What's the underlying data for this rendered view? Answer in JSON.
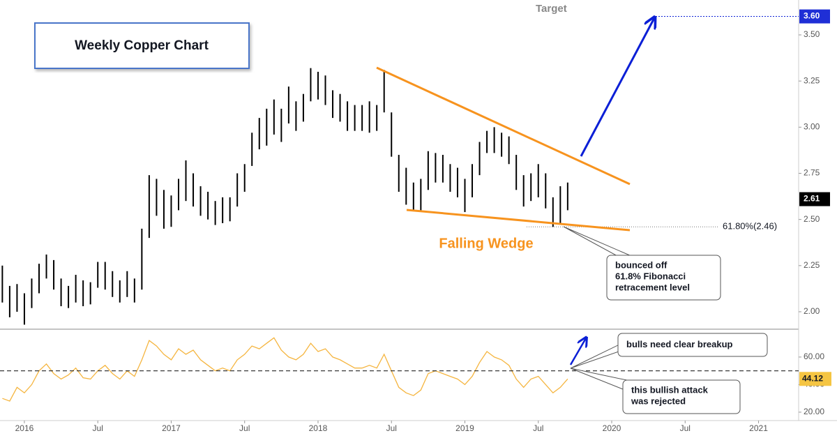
{
  "chart_data": [
    {
      "type": "ohlc",
      "title": "Weekly Copper Chart",
      "color": "#000000",
      "x": [
        2015.85,
        2015.9,
        2015.95,
        2016,
        2016.05,
        2016.1,
        2016.15,
        2016.2,
        2016.25,
        2016.3,
        2016.35,
        2016.4,
        2016.45,
        2016.5,
        2016.55,
        2016.6,
        2016.65,
        2016.7,
        2016.75,
        2016.8,
        2016.85,
        2016.9,
        2016.95,
        2017,
        2017.05,
        2017.1,
        2017.15,
        2017.2,
        2017.25,
        2017.3,
        2017.35,
        2017.4,
        2017.45,
        2017.5,
        2017.55,
        2017.6,
        2017.65,
        2017.7,
        2017.75,
        2017.8,
        2017.85,
        2017.9,
        2017.95,
        2018,
        2018.05,
        2018.1,
        2018.15,
        2018.2,
        2018.25,
        2018.3,
        2018.35,
        2018.4,
        2018.45,
        2018.5,
        2018.55,
        2018.6,
        2018.65,
        2018.7,
        2018.75,
        2018.8,
        2018.85,
        2018.9,
        2018.95,
        2019,
        2019.05,
        2019.1,
        2019.15,
        2019.2,
        2019.25,
        2019.3,
        2019.35,
        2019.4,
        2019.45,
        2019.5,
        2019.55,
        2019.6,
        2019.65,
        2019.7
      ],
      "high": [
        2.25,
        2.14,
        2.15,
        2.1,
        2.18,
        2.26,
        2.31,
        2.28,
        2.18,
        2.14,
        2.2,
        2.17,
        2.16,
        2.27,
        2.27,
        2.22,
        2.17,
        2.22,
        2.18,
        2.45,
        2.74,
        2.72,
        2.66,
        2.63,
        2.72,
        2.82,
        2.75,
        2.68,
        2.65,
        2.6,
        2.62,
        2.62,
        2.75,
        2.8,
        2.97,
        3.05,
        3.1,
        3.15,
        3.1,
        3.22,
        3.14,
        3.18,
        3.32,
        3.3,
        3.28,
        3.2,
        3.18,
        3.14,
        3.12,
        3.12,
        3.14,
        3.12,
        3.31,
        3.08,
        2.85,
        2.78,
        2.7,
        2.72,
        2.87,
        2.86,
        2.85,
        2.8,
        2.78,
        2.72,
        2.8,
        2.92,
        2.98,
        3.0,
        2.97,
        2.95,
        2.85,
        2.74,
        2.75,
        2.8,
        2.75,
        2.62,
        2.68,
        2.7
      ],
      "low": [
        2.05,
        1.97,
        2.0,
        1.93,
        2.02,
        2.1,
        2.18,
        2.12,
        2.03,
        2.02,
        2.05,
        2.03,
        2.04,
        2.13,
        2.12,
        2.08,
        2.05,
        2.08,
        2.05,
        2.12,
        2.4,
        2.52,
        2.45,
        2.46,
        2.55,
        2.6,
        2.57,
        2.52,
        2.5,
        2.47,
        2.48,
        2.49,
        2.57,
        2.65,
        2.79,
        2.88,
        2.9,
        2.96,
        2.92,
        3.02,
        2.98,
        3.03,
        3.14,
        3.15,
        3.12,
        3.05,
        3.03,
        2.98,
        2.98,
        2.98,
        2.97,
        2.98,
        3.08,
        2.84,
        2.65,
        2.58,
        2.55,
        2.55,
        2.66,
        2.7,
        2.7,
        2.65,
        2.62,
        2.54,
        2.62,
        2.74,
        2.86,
        2.86,
        2.84,
        2.8,
        2.66,
        2.57,
        2.6,
        2.62,
        2.56,
        2.46,
        2.48,
        2.55
      ],
      "xlim": [
        2015.834,
        2021.273
      ],
      "ylim": [
        1.913,
        3.689
      ],
      "yticks": [
        {
          "value": 2,
          "label": "2.00"
        },
        2.25,
        {
          "value": 2.5,
          "label": "2.50"
        },
        2.75,
        {
          "value": 3,
          "label": "3.00"
        },
        3.25,
        {
          "value": 3.5,
          "label": "3.50"
        }
      ],
      "target": {
        "value": 3.6,
        "label": "3.60",
        "text": "Target"
      },
      "last_price": {
        "value": 2.61,
        "label": "2.61"
      },
      "fibonacci": {
        "value": 2.46,
        "label": "61.80%(2.46)"
      },
      "annotations": [
        "Falling Wedge",
        [
          "bounced off",
          "61.8% Fibonacci",
          "retracement level"
        ]
      ]
    },
    {
      "type": "line",
      "color": "#f5b53f",
      "x": [
        2015.85,
        2015.9,
        2015.95,
        2016,
        2016.05,
        2016.1,
        2016.15,
        2016.2,
        2016.25,
        2016.3,
        2016.35,
        2016.4,
        2016.45,
        2016.5,
        2016.55,
        2016.6,
        2016.65,
        2016.7,
        2016.75,
        2016.8,
        2016.85,
        2016.9,
        2016.95,
        2017,
        2017.05,
        2017.1,
        2017.15,
        2017.2,
        2017.25,
        2017.3,
        2017.35,
        2017.4,
        2017.45,
        2017.5,
        2017.55,
        2017.6,
        2017.65,
        2017.7,
        2017.75,
        2017.8,
        2017.85,
        2017.9,
        2017.95,
        2018,
        2018.05,
        2018.1,
        2018.15,
        2018.2,
        2018.25,
        2018.3,
        2018.35,
        2018.4,
        2018.45,
        2018.5,
        2018.55,
        2018.6,
        2018.65,
        2018.7,
        2018.75,
        2018.8,
        2018.85,
        2018.9,
        2018.95,
        2019,
        2019.05,
        2019.1,
        2019.15,
        2019.2,
        2019.25,
        2019.3,
        2019.35,
        2019.4,
        2019.45,
        2019.5,
        2019.55,
        2019.6,
        2019.65,
        2019.7
      ],
      "values": [
        30,
        28,
        38,
        34,
        40,
        50,
        55,
        48,
        44,
        47,
        52,
        45,
        44,
        50,
        54,
        48,
        44,
        50,
        46,
        58,
        72,
        68,
        62,
        58,
        66,
        62,
        65,
        58,
        54,
        50,
        52,
        50,
        58,
        62,
        68,
        66,
        70,
        74,
        65,
        60,
        58,
        62,
        70,
        64,
        66,
        60,
        58,
        55,
        52,
        52,
        54,
        52,
        62,
        50,
        38,
        34,
        32,
        36,
        48,
        50,
        48,
        46,
        44,
        40,
        46,
        56,
        64,
        60,
        58,
        54,
        44,
        38,
        44,
        46,
        40,
        34,
        38,
        44.12
      ],
      "xlim": [
        2015.834,
        2021.273
      ],
      "ylim": [
        13.9,
        79.7
      ],
      "yticks": [
        {
          "value": 20,
          "label": "20.00"
        },
        {
          "value": 40,
          "label": "40.00"
        },
        {
          "value": 60,
          "label": "60.00"
        }
      ],
      "reference_line": 50,
      "last_value": {
        "value": 44.12,
        "label": "44.12"
      },
      "xticks": [
        2016,
        {
          "value": 2016.5,
          "label": "Jul"
        },
        2017,
        {
          "value": 2017.5,
          "label": "Jul"
        },
        2018,
        {
          "value": 2018.5,
          "label": "Jul"
        },
        2019,
        {
          "value": 2019.5,
          "label": "Jul"
        },
        2020,
        {
          "value": 2020.5,
          "label": "Jul"
        },
        2021
      ],
      "annotations": [
        "bulls need clear breakup",
        [
          "this bullish attack",
          "was rejected"
        ]
      ]
    }
  ]
}
